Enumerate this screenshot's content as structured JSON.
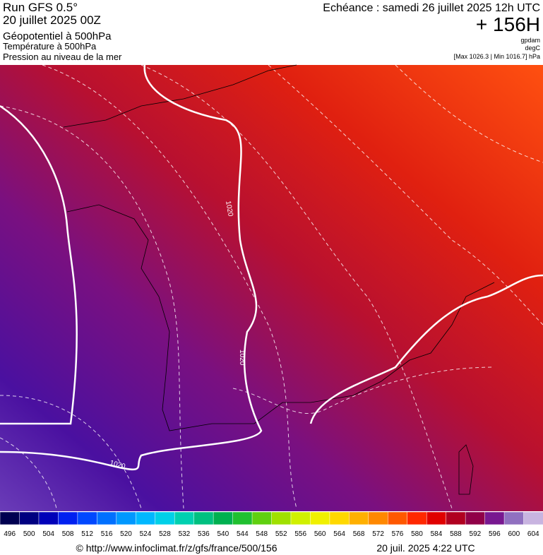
{
  "header": {
    "run": "Run GFS 0.5°",
    "date": "20 juillet 2025 00Z",
    "field1": "Géopotentiel à 500hPa",
    "field2": "Température à 500hPa",
    "field3": "Pression au niveau de la mer",
    "echeance": "Echéance : samedi 26 juillet 2025 12h UTC",
    "lead": "+ 156H",
    "unit1": "gpdam",
    "unit2": "degC",
    "range": "[Max 1026.3 | Min 1016.7] hPa"
  },
  "map": {
    "contour_labels": [
      "1020",
      "1020",
      "1020"
    ]
  },
  "legend": {
    "labels": [
      496,
      500,
      504,
      508,
      512,
      516,
      520,
      524,
      528,
      532,
      536,
      540,
      544,
      548,
      552,
      556,
      560,
      564,
      568,
      572,
      576,
      580,
      584,
      588,
      592,
      596,
      600,
      604
    ],
    "colors": [
      "#000050",
      "#000080",
      "#0000b8",
      "#0020f0",
      "#0048ff",
      "#0070ff",
      "#0098ff",
      "#00b8ff",
      "#00d0e8",
      "#00d0b0",
      "#00c080",
      "#00b050",
      "#20c030",
      "#60d010",
      "#a0e000",
      "#d0f000",
      "#f0f000",
      "#ffd800",
      "#ffb000",
      "#ff8800",
      "#ff5800",
      "#ff2800",
      "#e00000",
      "#b00020",
      "#900048",
      "#781890",
      "#9070c0",
      "#c8b4e0"
    ]
  },
  "footer": {
    "source": "© http://www.infoclimat.fr/z/gfs/france/500/156",
    "generated": "20 juil. 2025  4:22 UTC"
  }
}
